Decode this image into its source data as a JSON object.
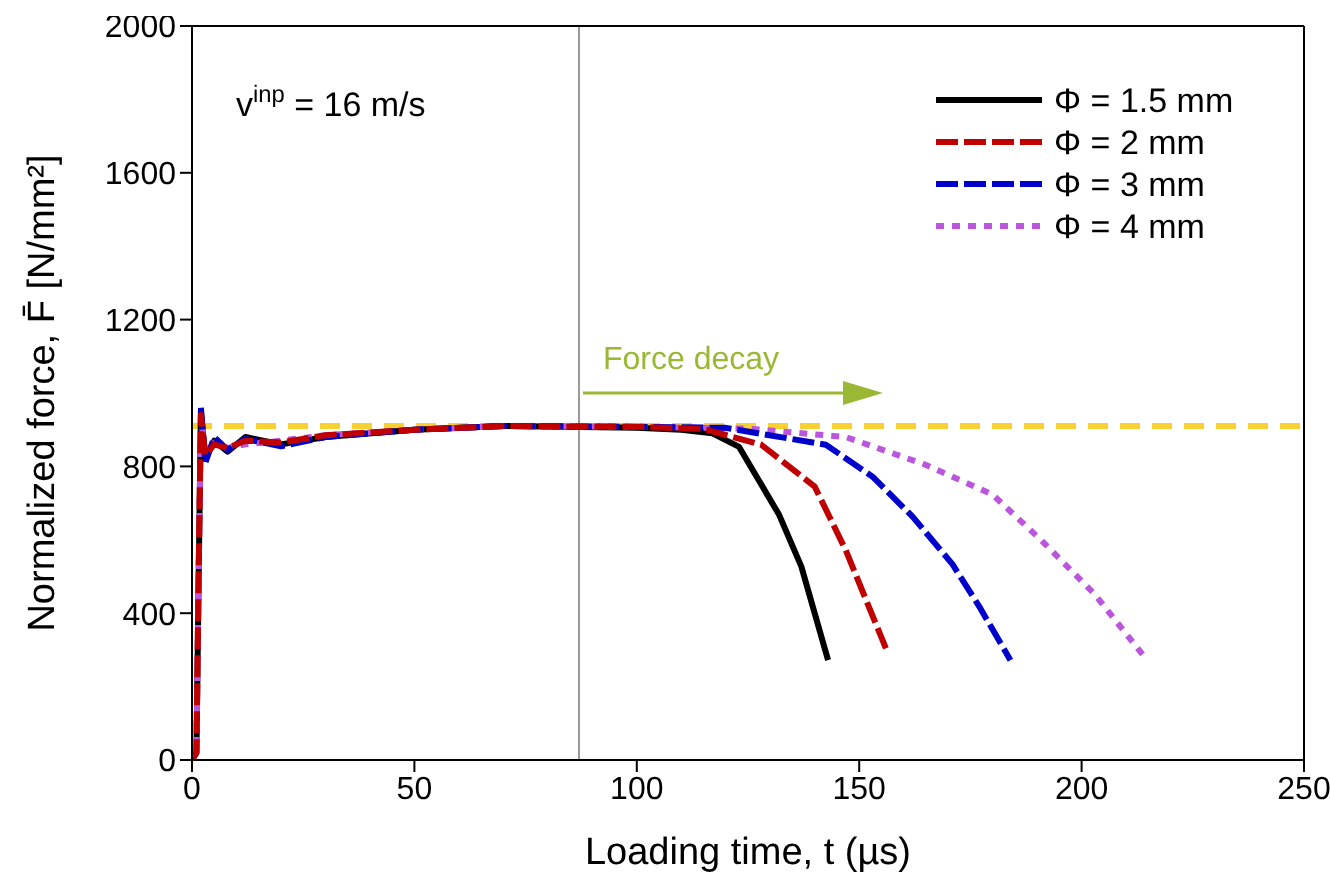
{
  "chart_data": {
    "type": "line",
    "xlabel": "Loading time, t (µs)",
    "ylabel": "Normalized force, F̄ [N/mm²]",
    "xlim": [
      0,
      250
    ],
    "xticks": [
      0,
      50,
      100,
      150,
      200,
      250
    ],
    "ylim": [
      0,
      2000
    ],
    "yticks": [
      0,
      400,
      800,
      1200,
      1600,
      2000
    ],
    "legend": "top right",
    "marker": "none",
    "series": [
      {
        "name": "Φ = 1.5 mm",
        "color": "#000000",
        "line_style": "solid",
        "x": [
          0,
          1,
          1.5,
          2,
          3,
          5,
          8,
          12,
          20,
          30,
          50,
          70,
          100,
          110,
          117,
          123,
          132,
          137,
          143
        ],
        "values": [
          0,
          20,
          500,
          950,
          820,
          870,
          840,
          880,
          860,
          880,
          900,
          910,
          905,
          900,
          890,
          853,
          668,
          527,
          272
        ]
      },
      {
        "name": "Φ = 2 mm",
        "color": "#c00000",
        "line_style": "dashed",
        "x": [
          0,
          1,
          1.5,
          2,
          3,
          5,
          8,
          12,
          20,
          30,
          50,
          70,
          100,
          115,
          128,
          140,
          147,
          156
        ],
        "values": [
          0,
          20,
          520,
          940,
          830,
          860,
          850,
          870,
          865,
          885,
          900,
          910,
          908,
          902,
          859,
          745,
          571,
          304
        ]
      },
      {
        "name": "Φ = 3 mm",
        "color": "#0000cc",
        "line_style": "dashed",
        "x": [
          2,
          3,
          5,
          8,
          12,
          20,
          30,
          50,
          70,
          100,
          120,
          142.5,
          153,
          162,
          171,
          177,
          184
        ],
        "values": [
          960,
          810,
          880,
          845,
          875,
          855,
          880,
          900,
          910,
          908,
          905,
          859,
          772,
          663,
          533,
          418,
          272
        ]
      },
      {
        "name": "Φ = 4 mm",
        "color": "#bb55dd",
        "line_style": "dotted",
        "x": [
          0,
          1,
          1.5,
          2,
          3,
          5,
          8,
          12,
          20,
          30,
          50,
          70,
          100,
          125,
          147,
          165,
          180,
          191,
          203,
          214
        ],
        "values": [
          0,
          25,
          510,
          930,
          840,
          865,
          850,
          860,
          870,
          885,
          900,
          910,
          908,
          903,
          880,
          804,
          723,
          598,
          451,
          283
        ]
      }
    ],
    "ref_lines": [
      {
        "axis": "y",
        "value": 910,
        "color": "#f8d030",
        "line_style": "dashed"
      },
      {
        "axis": "x",
        "value": 87,
        "color": "#999999",
        "line_style": "solid"
      }
    ],
    "annotations": [
      "v$^{inp}$ = 16 m/s",
      {
        "text": "Force decay",
        "x": 87,
        "y": 1000
      }
    ]
  }
}
